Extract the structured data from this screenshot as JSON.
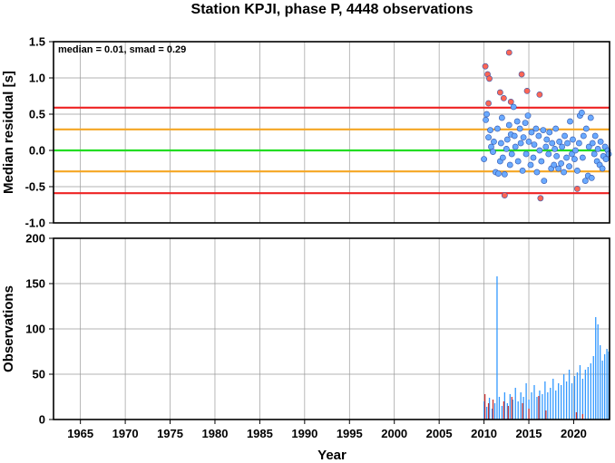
{
  "chart_data": [
    {
      "type": "scatter",
      "title": "Station KPJI, phase P, 4448 observations",
      "xlabel": "",
      "ylabel": "Median residual [s]",
      "xlim": [
        1962,
        2024
      ],
      "ylim": [
        -1.0,
        1.5
      ],
      "y_ticks": [
        "-1.0",
        "-0.5",
        "0.0",
        "0.5",
        "1.0",
        "1.5"
      ],
      "annotation": "median = 0.01, smad = 0.29",
      "grid": true,
      "reference_lines": [
        {
          "y": 0.0,
          "color": "#22dd22"
        },
        {
          "y": 0.29,
          "color": "#f5a623"
        },
        {
          "y": -0.29,
          "color": "#f5a623"
        },
        {
          "y": 0.59,
          "color": "#ee2222"
        },
        {
          "y": -0.59,
          "color": "#ee2222"
        }
      ],
      "series": [
        {
          "color": "#ff6655",
          "points": [
            [
              2010.15,
              1.16
            ],
            [
              2010.4,
              1.05
            ],
            [
              2010.6,
              0.99
            ],
            [
              2011.8,
              0.8
            ],
            [
              2012.2,
              0.72
            ],
            [
              2012.8,
              1.35
            ],
            [
              2013.0,
              0.67
            ],
            [
              2014.2,
              1.05
            ],
            [
              2014.8,
              0.82
            ],
            [
              2016.2,
              0.77
            ],
            [
              2012.3,
              -0.62
            ],
            [
              2016.3,
              -0.66
            ],
            [
              2020.4,
              -0.53
            ],
            [
              2010.5,
              0.65
            ]
          ]
        },
        {
          "color": "#6aaaff",
          "points": [
            [
              2010.0,
              -0.12
            ],
            [
              2010.2,
              0.42
            ],
            [
              2010.3,
              0.5
            ],
            [
              2010.5,
              0.18
            ],
            [
              2010.7,
              0.28
            ],
            [
              2010.8,
              0.05
            ],
            [
              2011.0,
              -0.02
            ],
            [
              2011.1,
              0.12
            ],
            [
              2011.3,
              -0.3
            ],
            [
              2011.5,
              0.3
            ],
            [
              2011.6,
              -0.32
            ],
            [
              2011.8,
              -0.15
            ],
            [
              2011.9,
              0.1
            ],
            [
              2012.0,
              0.45
            ],
            [
              2012.1,
              -0.1
            ],
            [
              2012.3,
              -0.33
            ],
            [
              2012.5,
              0.02
            ],
            [
              2012.6,
              0.15
            ],
            [
              2012.8,
              0.35
            ],
            [
              2012.9,
              -0.2
            ],
            [
              2013.0,
              0.22
            ],
            [
              2013.1,
              -0.05
            ],
            [
              2013.3,
              0.6
            ],
            [
              2013.4,
              0.2
            ],
            [
              2013.5,
              0.05
            ],
            [
              2013.7,
              0.4
            ],
            [
              2013.8,
              -0.15
            ],
            [
              2014.0,
              0.3
            ],
            [
              2014.1,
              0.1
            ],
            [
              2014.3,
              -0.28
            ],
            [
              2014.4,
              0.18
            ],
            [
              2014.6,
              0.38
            ],
            [
              2014.7,
              -0.05
            ],
            [
              2014.9,
              0.48
            ],
            [
              2015.0,
              0.12
            ],
            [
              2015.2,
              -0.2
            ],
            [
              2015.3,
              0.25
            ],
            [
              2015.5,
              -0.1
            ],
            [
              2015.6,
              0.08
            ],
            [
              2015.8,
              0.3
            ],
            [
              2015.9,
              -0.3
            ],
            [
              2016.1,
              0.2
            ],
            [
              2016.2,
              0.0
            ],
            [
              2016.4,
              -0.15
            ],
            [
              2016.6,
              0.28
            ],
            [
              2016.7,
              -0.42
            ],
            [
              2016.9,
              0.05
            ],
            [
              2017.0,
              0.15
            ],
            [
              2017.2,
              -0.05
            ],
            [
              2017.3,
              0.25
            ],
            [
              2017.5,
              -0.25
            ],
            [
              2017.6,
              0.1
            ],
            [
              2017.8,
              -0.2
            ],
            [
              2017.9,
              0.02
            ],
            [
              2018.0,
              0.3
            ],
            [
              2018.1,
              -0.08
            ],
            [
              2018.3,
              -0.25
            ],
            [
              2018.4,
              0.12
            ],
            [
              2018.6,
              -0.18
            ],
            [
              2018.7,
              0.05
            ],
            [
              2018.9,
              -0.3
            ],
            [
              2019.0,
              0.2
            ],
            [
              2019.2,
              -0.1
            ],
            [
              2019.3,
              0.1
            ],
            [
              2019.5,
              -0.22
            ],
            [
              2019.6,
              0.4
            ],
            [
              2019.8,
              -0.05
            ],
            [
              2019.9,
              0.15
            ],
            [
              2020.1,
              -0.12
            ],
            [
              2020.2,
              0.0
            ],
            [
              2020.4,
              -0.28
            ],
            [
              2020.6,
              0.1
            ],
            [
              2020.7,
              0.48
            ],
            [
              2020.9,
              0.52
            ],
            [
              2021.0,
              -0.1
            ],
            [
              2021.1,
              0.2
            ],
            [
              2021.3,
              -0.42
            ],
            [
              2021.4,
              0.3
            ],
            [
              2021.6,
              -0.35
            ],
            [
              2021.7,
              0.05
            ],
            [
              2021.9,
              0.45
            ],
            [
              2022.0,
              -0.38
            ],
            [
              2022.1,
              0.1
            ],
            [
              2022.3,
              -0.05
            ],
            [
              2022.4,
              0.2
            ],
            [
              2022.6,
              -0.15
            ],
            [
              2022.7,
              0.02
            ],
            [
              2022.9,
              -0.2
            ],
            [
              2023.0,
              0.12
            ],
            [
              2023.2,
              -0.25
            ],
            [
              2023.3,
              -0.08
            ],
            [
              2023.5,
              0.05
            ],
            [
              2023.6,
              -0.12
            ],
            [
              2023.8,
              0.0
            ],
            [
              2023.9,
              -0.05
            ]
          ]
        }
      ]
    },
    {
      "type": "bar",
      "xlabel": "Year",
      "ylabel": "Observations",
      "xlim": [
        1962,
        2024
      ],
      "ylim": [
        0,
        200
      ],
      "x_ticks": [
        "1965",
        "1970",
        "1975",
        "1980",
        "1985",
        "1990",
        "1995",
        "2000",
        "2005",
        "2010",
        "2015",
        "2020"
      ],
      "y_ticks": [
        "0",
        "50",
        "100",
        "150",
        "200"
      ],
      "grid": true,
      "series": [
        {
          "color": "#3399ff",
          "points": [
            [
              2010.0,
              20
            ],
            [
              2010.3,
              14
            ],
            [
              2010.6,
              24
            ],
            [
              2010.9,
              12
            ],
            [
              2011.2,
              18
            ],
            [
              2011.45,
              158
            ],
            [
              2011.7,
              25
            ],
            [
              2012.0,
              15
            ],
            [
              2012.3,
              30
            ],
            [
              2012.6,
              18
            ],
            [
              2012.9,
              28
            ],
            [
              2013.2,
              22
            ],
            [
              2013.5,
              35
            ],
            [
              2013.8,
              20
            ],
            [
              2014.1,
              30
            ],
            [
              2014.4,
              25
            ],
            [
              2014.7,
              40
            ],
            [
              2015.0,
              22
            ],
            [
              2015.3,
              30
            ],
            [
              2015.6,
              38
            ],
            [
              2015.9,
              25
            ],
            [
              2016.2,
              32
            ],
            [
              2016.5,
              28
            ],
            [
              2016.8,
              42
            ],
            [
              2017.1,
              30
            ],
            [
              2017.4,
              35
            ],
            [
              2017.7,
              45
            ],
            [
              2018.0,
              32
            ],
            [
              2018.3,
              40
            ],
            [
              2018.6,
              38
            ],
            [
              2018.9,
              50
            ],
            [
              2019.2,
              42
            ],
            [
              2019.5,
              55
            ],
            [
              2019.8,
              40
            ],
            [
              2020.1,
              48
            ],
            [
              2020.4,
              52
            ],
            [
              2020.7,
              60
            ],
            [
              2021.0,
              45
            ],
            [
              2021.3,
              55
            ],
            [
              2021.6,
              58
            ],
            [
              2021.9,
              62
            ],
            [
              2022.2,
              70
            ],
            [
              2022.45,
              113
            ],
            [
              2022.7,
              105
            ],
            [
              2022.95,
              82
            ],
            [
              2023.2,
              65
            ],
            [
              2023.45,
              72
            ],
            [
              2023.7,
              78
            ],
            [
              2023.9,
              75
            ]
          ]
        },
        {
          "color": "#cc3333",
          "points": [
            [
              2010.1,
              28
            ],
            [
              2010.5,
              18
            ],
            [
              2011.0,
              22
            ],
            [
              2012.2,
              20
            ],
            [
              2012.7,
              15
            ],
            [
              2013.1,
              25
            ],
            [
              2014.3,
              18
            ],
            [
              2015.0,
              12
            ],
            [
              2016.1,
              26
            ],
            [
              2016.9,
              10
            ],
            [
              2020.3,
              8
            ],
            [
              2021.0,
              6
            ]
          ]
        }
      ]
    }
  ]
}
